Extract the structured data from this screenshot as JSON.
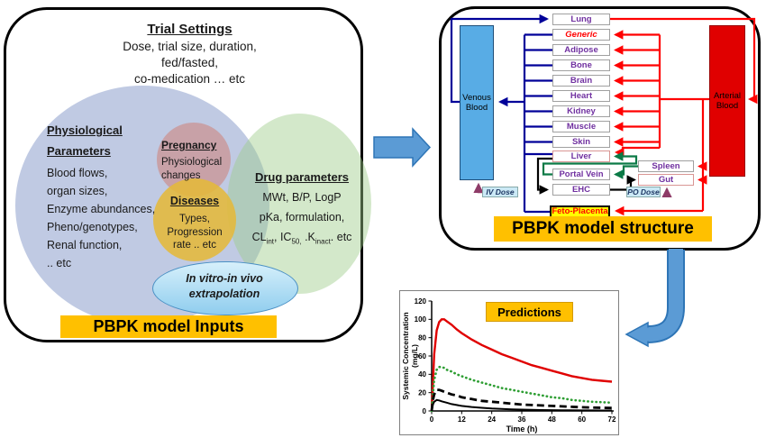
{
  "left_panel": {
    "trial": {
      "title": "Trial Settings",
      "line1": "Dose, trial size, duration,",
      "line2": "fed/fasted,",
      "line3": "co-medication  … etc"
    },
    "physio": {
      "title1": "Physiological",
      "title2": "Parameters",
      "i0": "Blood flows,",
      "i1": "organ sizes,",
      "i2": "Enzyme abundances,",
      "i3": "Pheno/genotypes,",
      "i4": "Renal function,",
      "i5": ".. etc"
    },
    "pregnancy": {
      "title": "Pregnancy",
      "line1": "Physiological",
      "line2": "changes"
    },
    "diseases": {
      "title": "Diseases",
      "line1": "Types,",
      "line2": "Progression",
      "line3": "rate .. etc"
    },
    "drug": {
      "title": "Drug parameters",
      "line1": "MWt, B/P, LogP",
      "line2": "pKa, formulation,",
      "cl": {
        "p1": "CL",
        "s1": "int",
        "p2": ", IC",
        "s2": "50,",
        "p3": " .K",
        "s3": "inact",
        "p4": ". etc"
      }
    },
    "ivive": {
      "line1": "In vitro-in vivo",
      "line2": "extrapolation"
    },
    "footer": "PBPK model Inputs"
  },
  "right_panel": {
    "organs": [
      "Lung",
      "Generic",
      "Adipose",
      "Bone",
      "Brain",
      "Heart",
      "Kidney",
      "Muscle",
      "Skin",
      "Liver",
      "Portal Vein",
      "EHC"
    ],
    "venous": "Venous Blood",
    "arterial": "Arterial Blood",
    "spleen": "Spleen",
    "gut": "Gut",
    "feto": "Feto-Placenta",
    "iv_dose": "IV Dose",
    "po_dose": "PO Dose",
    "footer": "PBPK model structure"
  },
  "chart_data": {
    "type": "line",
    "title": "Predictions",
    "xlabel": "Time (h)",
    "ylabel_line1": "Systemic Concentration",
    "ylabel_line2": "(mg/L)",
    "xlim": [
      0,
      72
    ],
    "ylim": [
      0,
      120
    ],
    "xticks": [
      0,
      12,
      24,
      36,
      48,
      60,
      72
    ],
    "yticks": [
      0,
      20,
      40,
      60,
      80,
      100,
      120
    ],
    "grid": false,
    "legend": "none",
    "series": [
      {
        "name": "red-solid",
        "color": "#E00000",
        "style": "solid",
        "width": 2.4,
        "points": [
          [
            0,
            0
          ],
          [
            0.5,
            30
          ],
          [
            1,
            62
          ],
          [
            2,
            88
          ],
          [
            3,
            97
          ],
          [
            4,
            100
          ],
          [
            5,
            100
          ],
          [
            6,
            98
          ],
          [
            8,
            94
          ],
          [
            10,
            89
          ],
          [
            12,
            85
          ],
          [
            16,
            78
          ],
          [
            20,
            72
          ],
          [
            24,
            67
          ],
          [
            28,
            62
          ],
          [
            32,
            58
          ],
          [
            36,
            54
          ],
          [
            40,
            50
          ],
          [
            44,
            47
          ],
          [
            48,
            44
          ],
          [
            52,
            41
          ],
          [
            56,
            38
          ],
          [
            60,
            36
          ],
          [
            64,
            34
          ],
          [
            68,
            33
          ],
          [
            72,
            32
          ]
        ]
      },
      {
        "name": "green-dotted",
        "color": "#2e9e33",
        "style": "dotted",
        "width": 2.6,
        "points": [
          [
            0,
            0
          ],
          [
            0.5,
            18
          ],
          [
            1,
            34
          ],
          [
            2,
            45
          ],
          [
            3,
            48
          ],
          [
            4,
            48
          ],
          [
            5,
            47
          ],
          [
            6,
            45
          ],
          [
            8,
            43
          ],
          [
            10,
            40
          ],
          [
            12,
            38
          ],
          [
            16,
            34
          ],
          [
            20,
            31
          ],
          [
            24,
            28
          ],
          [
            28,
            25
          ],
          [
            32,
            23
          ],
          [
            36,
            21
          ],
          [
            40,
            19
          ],
          [
            44,
            17
          ],
          [
            48,
            15
          ],
          [
            52,
            14
          ],
          [
            56,
            12
          ],
          [
            60,
            11
          ],
          [
            64,
            10
          ],
          [
            68,
            9.5
          ],
          [
            72,
            9
          ]
        ]
      },
      {
        "name": "black-dashed",
        "color": "#000000",
        "style": "dashed",
        "width": 2.8,
        "points": [
          [
            0,
            0
          ],
          [
            0.5,
            12
          ],
          [
            1,
            18
          ],
          [
            2,
            23
          ],
          [
            3,
            23
          ],
          [
            4,
            22
          ],
          [
            6,
            20
          ],
          [
            8,
            18
          ],
          [
            10,
            17
          ],
          [
            12,
            15
          ],
          [
            16,
            13
          ],
          [
            20,
            11
          ],
          [
            24,
            10
          ],
          [
            28,
            9
          ],
          [
            32,
            8
          ],
          [
            36,
            7
          ],
          [
            40,
            6.5
          ],
          [
            44,
            6
          ],
          [
            48,
            5.5
          ],
          [
            52,
            5
          ],
          [
            56,
            4.5
          ],
          [
            60,
            4
          ],
          [
            64,
            3.7
          ],
          [
            68,
            3.4
          ],
          [
            72,
            3.2
          ]
        ]
      },
      {
        "name": "black-solid",
        "color": "#000000",
        "style": "solid",
        "width": 2,
        "points": [
          [
            0,
            0
          ],
          [
            0.5,
            7
          ],
          [
            1,
            10
          ],
          [
            2,
            12
          ],
          [
            3,
            11.5
          ],
          [
            4,
            10.5
          ],
          [
            6,
            9
          ],
          [
            8,
            7.5
          ],
          [
            10,
            6.5
          ],
          [
            12,
            5.5
          ],
          [
            16,
            4.3
          ],
          [
            20,
            3.4
          ],
          [
            24,
            2.7
          ],
          [
            28,
            2.2
          ],
          [
            32,
            1.8
          ],
          [
            36,
            1.5
          ],
          [
            40,
            1.2
          ],
          [
            44,
            1
          ],
          [
            48,
            0.9
          ],
          [
            52,
            0.8
          ],
          [
            56,
            0.7
          ],
          [
            60,
            0.6
          ],
          [
            64,
            0.6
          ],
          [
            68,
            0.5
          ],
          [
            72,
            0.5
          ]
        ]
      }
    ]
  },
  "colors": {
    "accent_orange": "#FFC000",
    "venous_blue": "#58ACE5",
    "arterial_red": "#E00000",
    "line_navy": "#000099",
    "line_red": "#FF0000",
    "line_green": "#0B7A46",
    "dose_purple": "#8E3B67",
    "organ_purple": "#7030A0",
    "big_arrow_blue": "#5B9BD5"
  }
}
